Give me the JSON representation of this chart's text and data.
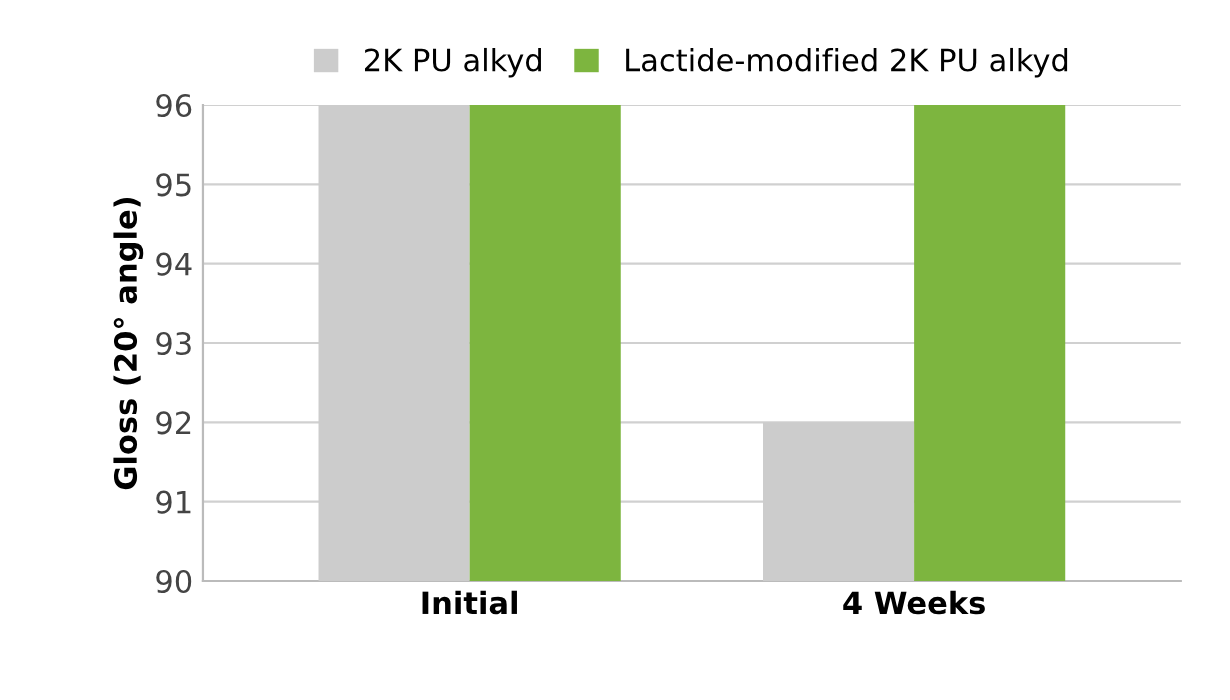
{
  "chart_data": {
    "type": "bar",
    "ylabel": "Gloss (20° angle)",
    "categories": [
      "Initial",
      "4 Weeks"
    ],
    "series": [
      {
        "name": "2K PU alkyd",
        "color": "#cccccc",
        "values": [
          96,
          92
        ]
      },
      {
        "name": "Lactide-modified 2K PU alkyd",
        "color": "#7db53f",
        "values": [
          96,
          96
        ]
      }
    ],
    "ylim": [
      90,
      96
    ],
    "yticks": [
      90,
      91,
      92,
      93,
      94,
      95,
      96
    ],
    "grid": "y",
    "legend": "top"
  }
}
